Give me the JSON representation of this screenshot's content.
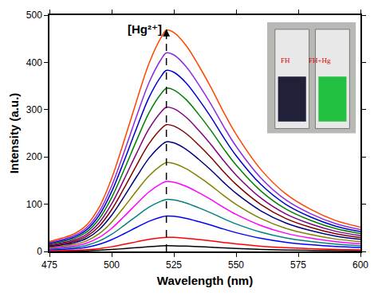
{
  "chart_data": {
    "type": "line",
    "x_label": "Wavelength (nm)",
    "y_label": "Intensity (a.u.)",
    "x": [
      475,
      480,
      485,
      490,
      495,
      500,
      505,
      510,
      515,
      520,
      522,
      525,
      530,
      535,
      540,
      545,
      550,
      560,
      570,
      580,
      590,
      600
    ],
    "xlim": [
      475,
      600
    ],
    "xticks": [
      475,
      500,
      525,
      550,
      575,
      600
    ],
    "ylim": [
      0,
      500
    ],
    "yticks": [
      0,
      100,
      200,
      300,
      400,
      500
    ],
    "grid": false,
    "annotations": [
      {
        "text": "[Hg²⁺]",
        "x": 522,
        "y": 470
      }
    ],
    "inset": {
      "labels": [
        "FH",
        "FH+Hg"
      ]
    },
    "series": [
      {
        "color": "#000000",
        "values": [
          0.5,
          0.7,
          1,
          1.4,
          2.4,
          4,
          6,
          8,
          10,
          11.6,
          12,
          11.9,
          11.2,
          10,
          8.9,
          7.6,
          6.4,
          4.4,
          3.1,
          2.3,
          1.7,
          1.3
        ]
      },
      {
        "color": "#ff0000",
        "values": [
          1.4,
          1.8,
          2.4,
          3.6,
          6,
          9.9,
          15,
          20.4,
          25.5,
          29.1,
          30,
          29.7,
          27.9,
          25.2,
          22.2,
          18.9,
          15.9,
          11.1,
          7.8,
          5.7,
          4.2,
          3.3
        ]
      },
      {
        "color": "#0000ff",
        "values": [
          3.4,
          4.5,
          6,
          9,
          15,
          24.8,
          37.5,
          51,
          63.8,
          72.8,
          75,
          74.3,
          69.8,
          63,
          55.5,
          47.3,
          39.8,
          27.8,
          19.5,
          14.3,
          10.5,
          8.3
        ]
      },
      {
        "color": "#008080",
        "values": [
          5,
          6.6,
          8.8,
          13.2,
          22,
          36.3,
          55,
          74.8,
          93.5,
          106.7,
          110,
          108.9,
          102.3,
          92.4,
          81.4,
          69.3,
          58.3,
          40.7,
          28.6,
          20.9,
          15.4,
          12.1
        ]
      },
      {
        "color": "#ff00ff",
        "values": [
          6.7,
          8.9,
          11.8,
          17.8,
          29.6,
          48.8,
          74,
          100.6,
          125.8,
          143.6,
          148,
          146.5,
          137.6,
          124.3,
          109.5,
          93.2,
          78.4,
          54.8,
          38.5,
          28.1,
          20.7,
          16.3
        ]
      },
      {
        "color": "#808000",
        "values": [
          8.5,
          11.3,
          15,
          22.6,
          37.6,
          62,
          94,
          127.8,
          159.8,
          182.4,
          188,
          186.1,
          174.8,
          157.9,
          139.1,
          118.4,
          99.6,
          69.6,
          48.9,
          35.7,
          26.3,
          20.7
        ]
      },
      {
        "color": "#000080",
        "values": [
          10.4,
          13.9,
          18.6,
          27.8,
          46.4,
          76.6,
          116,
          157.8,
          197.2,
          225,
          232,
          229.7,
          215.8,
          194.9,
          171.7,
          146.2,
          123,
          85.8,
          60.3,
          44.1,
          32.5,
          25.5
        ]
      },
      {
        "color": "#800000",
        "values": [
          12.1,
          16.1,
          21.4,
          32.2,
          53.6,
          88.4,
          134,
          182.2,
          227.8,
          260,
          268,
          265.3,
          249.2,
          225.1,
          198.3,
          168.8,
          142,
          99.2,
          69.7,
          50.9,
          37.5,
          29.5
        ]
      },
      {
        "color": "#800080",
        "values": [
          13.7,
          18.3,
          24.4,
          36.6,
          61,
          100.7,
          152.5,
          207.4,
          259.3,
          295.9,
          305,
          302,
          283.7,
          256.2,
          225.7,
          192.2,
          161.7,
          112.9,
          79.3,
          58,
          42.7,
          33.6
        ]
      },
      {
        "color": "#008000",
        "values": [
          15.5,
          20.7,
          27.6,
          41.4,
          69,
          113.9,
          172.5,
          234.6,
          293.3,
          334.7,
          345,
          341.6,
          320.9,
          289.8,
          255.3,
          217.4,
          182.9,
          127.7,
          89.7,
          65.6,
          48.3,
          38
        ]
      },
      {
        "color": "#0000cd",
        "values": [
          17.2,
          23,
          30.6,
          46,
          76.6,
          126.4,
          191.5,
          260.4,
          325.6,
          371.5,
          383,
          379.2,
          356.2,
          321.7,
          283.4,
          241.3,
          203,
          141.7,
          99.6,
          72.8,
          53.6,
          42.1
        ]
      },
      {
        "color": "#8a2be2",
        "values": [
          18.9,
          25.2,
          33.6,
          50.4,
          84,
          138.6,
          210,
          285.6,
          357,
          407.4,
          420,
          415.8,
          390.6,
          352.8,
          310.8,
          264.6,
          222.6,
          155.4,
          109.2,
          79.8,
          58.8,
          46.2
        ]
      },
      {
        "color": "#ff4500",
        "values": [
          21.1,
          28.1,
          37.4,
          56.2,
          93.6,
          154.4,
          234,
          318.2,
          397.8,
          454,
          468,
          463.3,
          435.2,
          393.1,
          346.3,
          294.8,
          248,
          173.2,
          121.7,
          88.9,
          65.5,
          51.5
        ]
      }
    ]
  }
}
